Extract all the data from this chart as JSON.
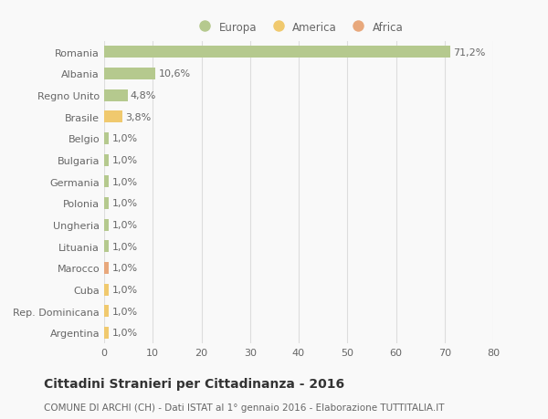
{
  "categories": [
    "Romania",
    "Albania",
    "Regno Unito",
    "Brasile",
    "Belgio",
    "Bulgaria",
    "Germania",
    "Polonia",
    "Ungheria",
    "Lituania",
    "Marocco",
    "Cuba",
    "Rep. Dominicana",
    "Argentina"
  ],
  "values": [
    71.2,
    10.6,
    4.8,
    3.8,
    1.0,
    1.0,
    1.0,
    1.0,
    1.0,
    1.0,
    1.0,
    1.0,
    1.0,
    1.0
  ],
  "labels": [
    "71,2%",
    "10,6%",
    "4,8%",
    "3,8%",
    "1,0%",
    "1,0%",
    "1,0%",
    "1,0%",
    "1,0%",
    "1,0%",
    "1,0%",
    "1,0%",
    "1,0%",
    "1,0%"
  ],
  "colors": [
    "#b5c98e",
    "#b5c98e",
    "#b5c98e",
    "#f0c96e",
    "#b5c98e",
    "#b5c98e",
    "#b5c98e",
    "#b5c98e",
    "#b5c98e",
    "#b5c98e",
    "#e8a87c",
    "#f0c96e",
    "#f0c96e",
    "#f0c96e"
  ],
  "legend_labels": [
    "Europa",
    "America",
    "Africa"
  ],
  "legend_colors": [
    "#b5c98e",
    "#f0c96e",
    "#e8a87c"
  ],
  "xlim": [
    0,
    80
  ],
  "xticks": [
    0,
    10,
    20,
    30,
    40,
    50,
    60,
    70,
    80
  ],
  "title": "Cittadini Stranieri per Cittadinanza - 2016",
  "subtitle": "COMUNE DI ARCHI (CH) - Dati ISTAT al 1° gennaio 2016 - Elaborazione TUTTITALIA.IT",
  "bg_color": "#f9f9f9",
  "grid_color": "#dddddd",
  "bar_height": 0.55,
  "label_fontsize": 8,
  "tick_fontsize": 8,
  "title_fontsize": 10,
  "subtitle_fontsize": 7.5
}
